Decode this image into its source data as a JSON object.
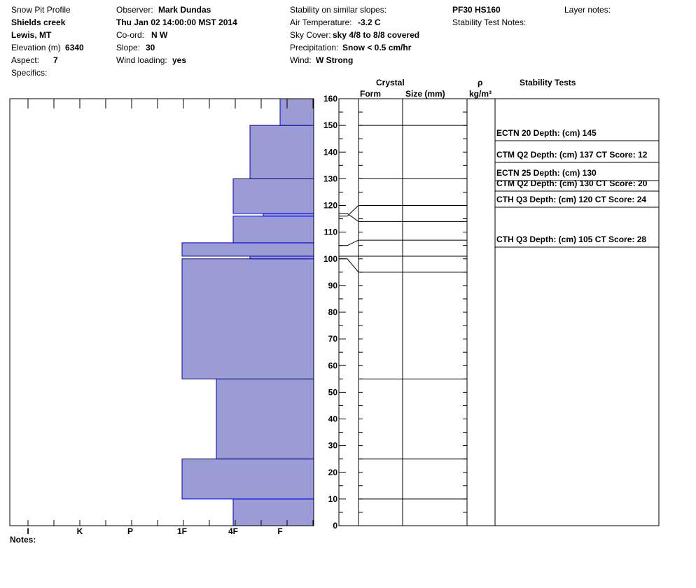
{
  "header": {
    "title": "Snow Pit Profile",
    "location": "Shields creek",
    "region": "Lewis, MT",
    "elevation_label": "Elevation (m)",
    "elevation_value": "6340",
    "aspect_label": "Aspect:",
    "aspect_value": "7",
    "specifics_label": "Specifics:",
    "observer_label": "Observer:",
    "observer_value": "Mark Dundas",
    "datetime": "Thu Jan 02 14:00:00 MST 2014",
    "coord_label": "Co-ord:",
    "coord_value": "N  W",
    "slope_label": "Slope:",
    "slope_value": "30",
    "wind_loading_label": "Wind loading:",
    "wind_loading_value": "yes",
    "stability_similar_label": "Stability on similar slopes:",
    "air_temp_label": "Air Temperature:",
    "air_temp_value": "-3.2 C",
    "sky_label": "Sky Cover:",
    "sky_value": "sky 4/8 to 8/8 covered",
    "precip_label": "Precipitation:",
    "precip_value": "Snow < 0.5 cm/hr",
    "wind_label": "Wind:",
    "wind_value": "W Strong",
    "pf_hs": "PF30 HS160",
    "stability_notes_label": "Stability Test Notes:",
    "layer_notes_label": "Layer notes:"
  },
  "columns": {
    "crystal": "Crystal",
    "form": "Form",
    "size": "Size (mm)",
    "rho": "ρ",
    "density_unit": "kg/m³",
    "stability_tests": "Stability Tests"
  },
  "notes_label": "Notes:",
  "colors": {
    "hardness_fill": "#9b9bd6",
    "hardness_edge": "#0000cc"
  },
  "chart_data": {
    "type": "bar",
    "orientation": "horizontal",
    "ylabel": "",
    "ylim": [
      0,
      160
    ],
    "height_ticks": [
      0,
      10,
      20,
      30,
      40,
      50,
      60,
      70,
      80,
      90,
      100,
      110,
      120,
      130,
      140,
      150,
      160
    ],
    "hardness_scale": [
      "I",
      "K",
      "P",
      "1F",
      "4F",
      "F"
    ],
    "hardness_layers": [
      {
        "bottom": 0,
        "top": 10,
        "hardness": "4F"
      },
      {
        "bottom": 10,
        "top": 25,
        "hardness": "1F"
      },
      {
        "bottom": 25,
        "top": 55,
        "hardness": "4F+"
      },
      {
        "bottom": 55,
        "top": 100,
        "hardness": "1F"
      },
      {
        "bottom": 100,
        "top": 101,
        "hardness": "4F-"
      },
      {
        "bottom": 101,
        "top": 106,
        "hardness": "1F"
      },
      {
        "bottom": 106,
        "top": 116,
        "hardness": "4F"
      },
      {
        "bottom": 116,
        "top": 117,
        "hardness": "F+"
      },
      {
        "bottom": 117,
        "top": 130,
        "hardness": "4F"
      },
      {
        "bottom": 130,
        "top": 150,
        "hardness": "4F-"
      },
      {
        "bottom": 150,
        "top": 160,
        "hardness": "F"
      }
    ],
    "layer_boundaries": [
      10,
      25,
      55,
      95,
      101,
      107,
      114,
      120,
      130,
      150
    ],
    "stability_tests": [
      {
        "text": "ECTN 20   Depth: (cm) 145",
        "depth": 145
      },
      {
        "text": "CTM Q2 Depth: (cm) 137 CT Score: 12",
        "depth": 137
      },
      {
        "text": "ECTN 25   Depth: (cm) 130",
        "depth": 130
      },
      {
        "text": "CTM Q2 Depth: (cm) 130 CT Score: 20",
        "depth": 130
      },
      {
        "text": "CTH Q3 Depth: (cm) 120 CT Score: 24",
        "depth": 120
      },
      {
        "text": "CTH Q3 Depth: (cm) 105 CT Score: 28",
        "depth": 105
      }
    ]
  }
}
